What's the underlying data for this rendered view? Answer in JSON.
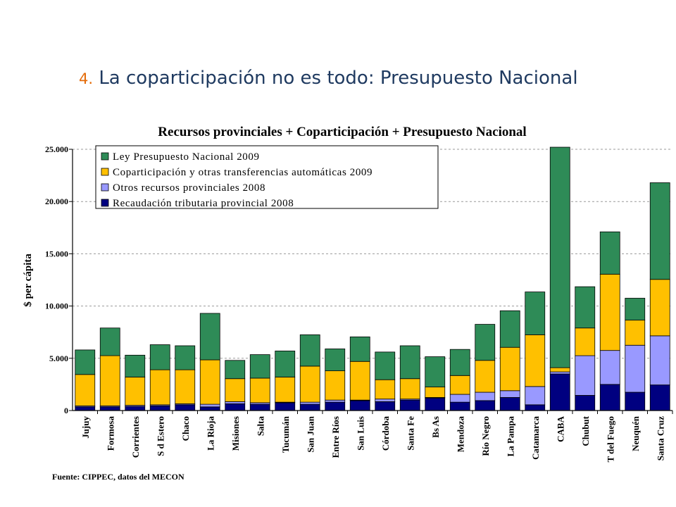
{
  "slide": {
    "number": "4.",
    "title": "La coparticipación no es todo: Presupuesto Nacional",
    "source": "Fuente: CIPPEC, datos del MECON"
  },
  "chart_data": {
    "type": "bar",
    "stacked": true,
    "title": "Recursos provinciales + Coparticipación + Presupuesto Nacional",
    "ylabel": "$ per cápita",
    "xlabel": "",
    "ylim": [
      0,
      25000
    ],
    "yticks": [
      "0",
      "5.000",
      "10.000",
      "15.000",
      "20.000",
      "25.000"
    ],
    "ytick_values": [
      0,
      5000,
      10000,
      15000,
      20000,
      25000
    ],
    "grid": true,
    "legend_position": "top-left",
    "categories": [
      "Jujuy",
      "Formosa",
      "Corrientes",
      "S d Estero",
      "Chaco",
      "La Rioja",
      "Misiones",
      "Salta",
      "Tucumán",
      "San Juan",
      "Entre Ríos",
      "San Luis",
      "Córdoba",
      "Santa Fe",
      "Bs As",
      "Mendoza",
      "Río Negro",
      "La Pampa",
      "Catamarca",
      "CABA",
      "Chubut",
      "T del Fuego",
      "Neuquén",
      "Santa Cruz"
    ],
    "series": [
      {
        "name": "Recaudación tributaria provincial 2008",
        "color": "#000080",
        "values": [
          350,
          350,
          400,
          450,
          550,
          350,
          650,
          600,
          750,
          600,
          800,
          950,
          850,
          1000,
          1200,
          800,
          950,
          1250,
          550,
          3500,
          1450,
          2500,
          1750,
          2450
        ]
      },
      {
        "name": "Otros recursos provinciales 2008",
        "color": "#9999ff",
        "values": [
          100,
          100,
          100,
          100,
          100,
          250,
          200,
          150,
          50,
          200,
          200,
          50,
          250,
          100,
          50,
          750,
          800,
          650,
          1750,
          200,
          3800,
          3250,
          4500,
          4700
        ]
      },
      {
        "name": "Coparticipación y otras transferencias automáticas 2009",
        "color": "#ffc000",
        "values": [
          3000,
          4800,
          2700,
          3350,
          3250,
          4250,
          2200,
          2350,
          2400,
          3450,
          2800,
          3700,
          1850,
          1950,
          1000,
          1800,
          3050,
          4150,
          4950,
          400,
          2650,
          7300,
          2400,
          5400
        ]
      },
      {
        "name": "Ley Presupuesto Nacional 2009",
        "color": "#2e8b57",
        "values": [
          2350,
          2650,
          2100,
          2400,
          2300,
          4450,
          1750,
          2250,
          2500,
          3000,
          2100,
          2350,
          2650,
          3150,
          2900,
          2500,
          3450,
          3500,
          4100,
          21100,
          3950,
          4050,
          2100,
          9250
        ]
      }
    ],
    "legend_order": [
      "Ley Presupuesto Nacional 2009",
      "Coparticipación y otras transferencias automáticas 2009",
      "Otros recursos provinciales 2008",
      "Recaudación tributaria provincial 2008"
    ]
  }
}
